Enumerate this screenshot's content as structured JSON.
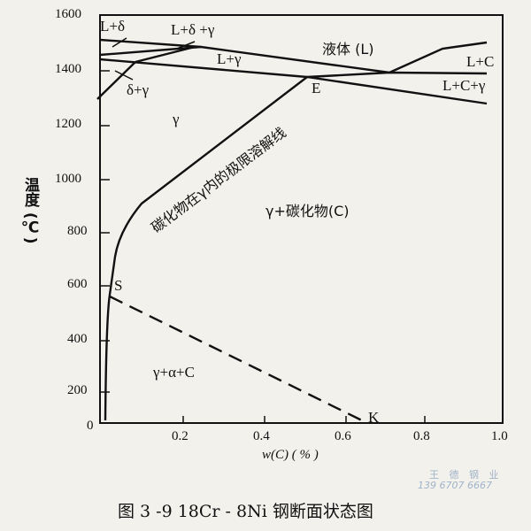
{
  "figure": {
    "caption": "图 3 -9    18Cr - 8Ni 钢断面状态图",
    "y_axis": {
      "label": "温度 (℃)",
      "ticks": [
        "1600",
        "1400",
        "1200",
        "1000",
        "800",
        "600",
        "400",
        "200",
        "0"
      ]
    },
    "x_axis": {
      "label": "w(C) ( % )",
      "ticks": [
        "0.2",
        "0.4",
        "0.6",
        "0.8",
        "1.0"
      ]
    },
    "regions": {
      "l_delta": "L+δ",
      "l_delta_gamma": "L+δ +γ",
      "liquid": "液体 (L)",
      "l_gamma": "L+γ",
      "l_c": "L+C",
      "l_c_gamma": "L+C+γ",
      "delta_gamma": "δ+γ",
      "gamma": "γ",
      "gamma_carbide": "γ+碳化物(C)",
      "gamma_alpha_c": "γ+α+C"
    },
    "points": {
      "e": "E",
      "s": "S",
      "k": "K"
    },
    "solvus_label": "碳化物在γ内的极限溶解线",
    "watermark": {
      "name": "王 德 钢 业",
      "phone": "139 6707 6667"
    }
  }
}
